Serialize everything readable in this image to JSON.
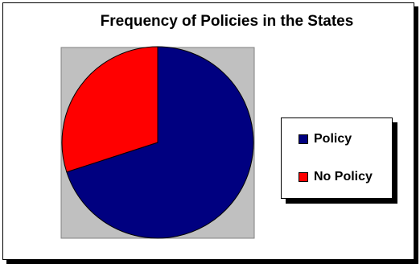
{
  "chart_data": {
    "type": "pie",
    "title": "Frequency of Policies in the States",
    "categories": [
      "Policy",
      "No Policy"
    ],
    "values": [
      70,
      30
    ],
    "colors": [
      "#000080",
      "#ff0000"
    ],
    "legend_position": "right",
    "plot_background": "#c0c0c0"
  }
}
